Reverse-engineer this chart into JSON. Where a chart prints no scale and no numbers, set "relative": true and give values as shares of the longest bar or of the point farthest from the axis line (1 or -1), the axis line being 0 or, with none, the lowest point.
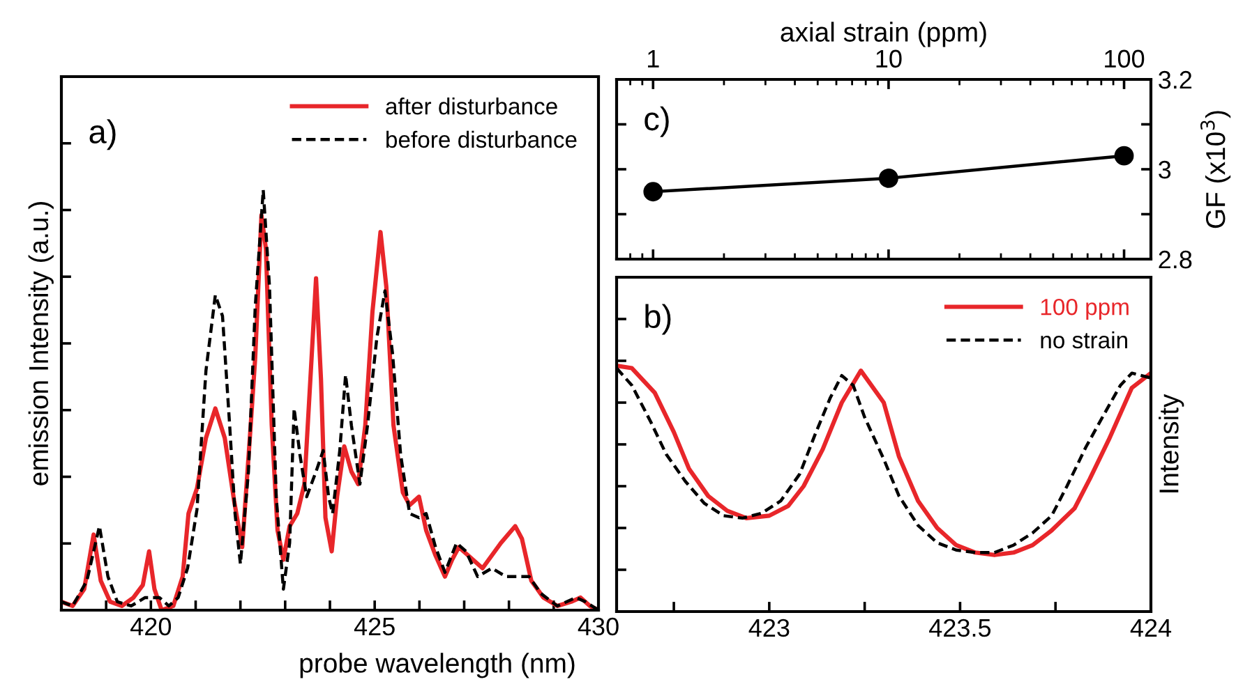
{
  "chart_data": [
    {
      "type": "line",
      "relative": true,
      "xlabel": "probe wavelength (nm)",
      "ylabel": "emission Intensity (a.u.)",
      "annotations": [
        "a)"
      ],
      "xlim": [
        418,
        430
      ],
      "xticks": [
        {
          "value": 419,
          "label": null
        },
        420,
        {
          "value": 421,
          "label": null
        },
        {
          "value": 422,
          "label": null
        },
        {
          "value": 423,
          "label": null
        },
        {
          "value": 424,
          "label": null
        },
        425,
        {
          "value": 426,
          "label": null
        },
        {
          "value": 427,
          "label": null
        },
        {
          "value": 428,
          "label": null
        },
        {
          "value": 429,
          "label": null
        },
        430
      ],
      "tick_labels": "x",
      "legend": "top right",
      "grid": false,
      "series": [
        {
          "name": "after disturbance",
          "color": "#e8262a",
          "line_style": "solid",
          "x": [
            418.0,
            418.25,
            418.51,
            418.72,
            418.88,
            419.09,
            419.35,
            419.61,
            419.82,
            419.96,
            420.08,
            420.24,
            420.5,
            420.71,
            420.84,
            421.03,
            421.23,
            421.44,
            421.65,
            421.86,
            422.04,
            422.23,
            422.33,
            422.47,
            422.57,
            422.7,
            422.83,
            422.96,
            423.1,
            423.27,
            423.43,
            423.59,
            423.69,
            423.8,
            423.9,
            424.04,
            424.16,
            424.32,
            424.48,
            424.63,
            424.79,
            424.95,
            425.13,
            425.26,
            425.42,
            425.63,
            425.78,
            425.99,
            426.15,
            426.36,
            426.57,
            426.73,
            426.88,
            427.09,
            427.41,
            427.82,
            428.14,
            428.29,
            428.5,
            428.77,
            429.08,
            429.39,
            429.6,
            429.81,
            430.0
          ],
          "values": [
            0.02,
            0.01,
            0.05,
            0.18,
            0.07,
            0.02,
            0.01,
            0.03,
            0.06,
            0.14,
            0.05,
            0,
            0.01,
            0.08,
            0.23,
            0.29,
            0.41,
            0.48,
            0.41,
            0.26,
            0.15,
            0.44,
            0.6,
            0.94,
            0.86,
            0.44,
            0.19,
            0.12,
            0.2,
            0.23,
            0.3,
            0.6,
            0.79,
            0.55,
            0.22,
            0.14,
            0.27,
            0.39,
            0.33,
            0.3,
            0.44,
            0.71,
            0.9,
            0.77,
            0.44,
            0.28,
            0.25,
            0.27,
            0.19,
            0.13,
            0.08,
            0.12,
            0.15,
            0.13,
            0.1,
            0.16,
            0.2,
            0.17,
            0.07,
            0.03,
            0.01,
            0.02,
            0.03,
            0.01,
            0
          ]
        },
        {
          "name": "before disturbance",
          "color": "#000000",
          "line_style": "dashed",
          "x": [
            418.0,
            418.25,
            418.57,
            418.85,
            419.04,
            419.25,
            419.56,
            419.87,
            420.19,
            420.4,
            420.61,
            420.82,
            421.03,
            421.23,
            421.44,
            421.6,
            421.76,
            421.88,
            422.0,
            422.18,
            422.33,
            422.51,
            422.65,
            422.8,
            422.96,
            423.1,
            423.2,
            423.33,
            423.48,
            423.69,
            423.85,
            423.97,
            424.06,
            424.22,
            424.35,
            424.48,
            424.67,
            424.84,
            425.05,
            425.23,
            425.4,
            425.58,
            425.78,
            425.99,
            426.15,
            426.36,
            426.57,
            426.83,
            427.04,
            427.3,
            427.62,
            427.93,
            428.45,
            428.71,
            429.08,
            429.5,
            429.71,
            430.0
          ],
          "values": [
            0.02,
            0.01,
            0.07,
            0.2,
            0.08,
            0.02,
            0.01,
            0.03,
            0.03,
            0.01,
            0.03,
            0.1,
            0.24,
            0.57,
            0.75,
            0.7,
            0.44,
            0.23,
            0.11,
            0.33,
            0.72,
            1.0,
            0.77,
            0.27,
            0.05,
            0.16,
            0.48,
            0.37,
            0.27,
            0.33,
            0.38,
            0.27,
            0.23,
            0.38,
            0.56,
            0.44,
            0.3,
            0.44,
            0.65,
            0.76,
            0.61,
            0.37,
            0.23,
            0.22,
            0.23,
            0.15,
            0.09,
            0.16,
            0.14,
            0.08,
            0.1,
            0.08,
            0.08,
            0.04,
            0.01,
            0.03,
            0.02,
            0
          ]
        }
      ]
    },
    {
      "type": "line",
      "relative": true,
      "ylabel": "Intensity",
      "annotations": [
        "b)"
      ],
      "xlim": [
        422.6,
        424
      ],
      "xticks": [
        {
          "value": 422.75,
          "label": null
        },
        423,
        {
          "value": 423.25,
          "label": null
        },
        423.5,
        {
          "value": 423.75,
          "label": null
        },
        424
      ],
      "tick_labels": "x",
      "legend": "top right",
      "grid": false,
      "series": [
        {
          "name": "100 ppm",
          "color": "#e8262a",
          "line_style": "solid",
          "x": [
            422.6,
            422.64,
            422.7,
            422.75,
            422.79,
            422.84,
            422.89,
            422.94,
            423.0,
            423.05,
            423.09,
            423.14,
            423.19,
            423.24,
            423.3,
            423.34,
            423.39,
            423.44,
            423.49,
            423.54,
            423.59,
            423.64,
            423.69,
            423.74,
            423.8,
            423.84,
            423.89,
            423.95,
            424.0
          ],
          "values": [
            1.0,
            0.99,
            0.89,
            0.73,
            0.58,
            0.47,
            0.41,
            0.38,
            0.39,
            0.43,
            0.51,
            0.66,
            0.85,
            0.98,
            0.85,
            0.63,
            0.45,
            0.34,
            0.27,
            0.24,
            0.23,
            0.24,
            0.27,
            0.33,
            0.42,
            0.54,
            0.7,
            0.91,
            0.97
          ]
        },
        {
          "name": "no strain",
          "color": "#000000",
          "line_style": "dashed",
          "x": [
            422.6,
            422.64,
            422.69,
            422.73,
            422.78,
            422.83,
            422.88,
            422.93,
            422.98,
            423.03,
            423.08,
            423.12,
            423.16,
            423.19,
            423.22,
            423.25,
            423.3,
            423.34,
            423.39,
            423.44,
            423.49,
            423.54,
            423.59,
            423.64,
            423.69,
            423.74,
            423.78,
            423.83,
            423.88,
            423.92,
            423.95,
            424.0
          ],
          "values": [
            0.99,
            0.92,
            0.77,
            0.64,
            0.53,
            0.44,
            0.39,
            0.38,
            0.4,
            0.45,
            0.56,
            0.72,
            0.87,
            0.96,
            0.92,
            0.79,
            0.62,
            0.47,
            0.35,
            0.28,
            0.25,
            0.24,
            0.24,
            0.27,
            0.32,
            0.39,
            0.51,
            0.67,
            0.81,
            0.92,
            0.97,
            0.95
          ]
        }
      ]
    },
    {
      "type": "line",
      "xlabel": "axial strain (ppm)",
      "ylabel": "GF (x10$^{3}$)",
      "annotations": [
        "c)"
      ],
      "log": "x",
      "xlim": [
        0.7,
        130
      ],
      "xticks": [
        1,
        10,
        100
      ],
      "ylim": [
        2.8,
        3.2
      ],
      "yticks": [
        2.8,
        {
          "value": 2.9,
          "label": null
        },
        3,
        {
          "value": 3.1,
          "label": null
        },
        3.2
      ],
      "marker": "circle",
      "line_style": "solid",
      "grid": false,
      "series": [
        {
          "color": "#000000",
          "x": [
            1,
            10,
            100
          ],
          "values": [
            2.95,
            2.98,
            3.03
          ]
        }
      ]
    }
  ]
}
